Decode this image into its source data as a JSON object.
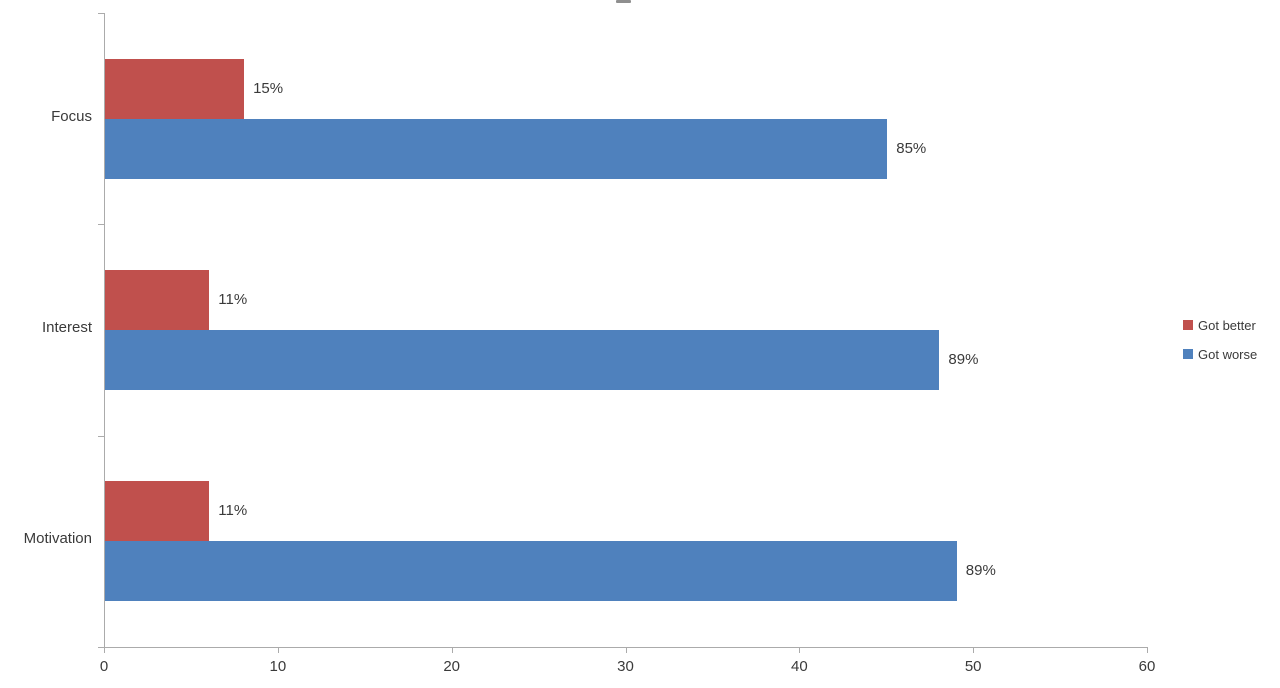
{
  "chart_data": {
    "type": "bar",
    "orientation": "horizontal",
    "title": "",
    "categories": [
      "Focus",
      "Interest",
      "Motivation"
    ],
    "series": [
      {
        "name": "Got better",
        "color": "#c0504d",
        "values": [
          8,
          6,
          6
        ],
        "data_labels": [
          "15%",
          "11%",
          "11%"
        ]
      },
      {
        "name": "Got worse",
        "color": "#4f81bd",
        "values": [
          45,
          48,
          49
        ],
        "data_labels": [
          "85%",
          "89%",
          "89%"
        ]
      }
    ],
    "x_axis": {
      "min": 0,
      "max": 60,
      "tick_labels": [
        "0",
        "10",
        "20",
        "30",
        "40",
        "50",
        "60"
      ]
    },
    "legend": {
      "position": "right",
      "entries": [
        "Got better",
        "Got worse"
      ]
    },
    "grid": false
  },
  "colors": {
    "series_got_better": "#c0504d",
    "series_got_worse": "#4f81bd",
    "axis_line": "#ababab",
    "text": "#3a3a3a"
  }
}
